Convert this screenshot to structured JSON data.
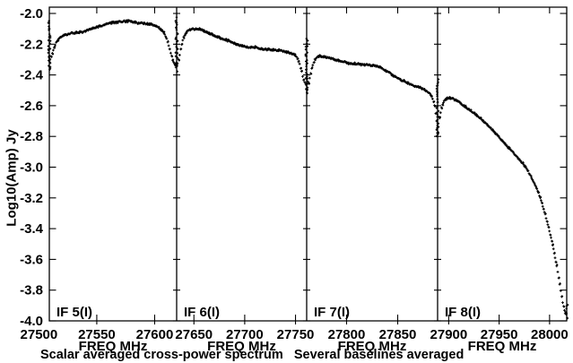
{
  "chart_data": {
    "type": "scatter",
    "title": "",
    "caption": "Scalar averaged cross-power spectrum   Several baselines averaged",
    "ylabel": "Log10(Amp) Jy",
    "x_axis_label": "FREQ MHz",
    "marker": "+",
    "grid": false,
    "legend": "none",
    "colors": {
      "foreground": "#000000",
      "background": "#ffffff"
    },
    "ylim": [
      -4.0,
      -2.0
    ],
    "y_ticks": [
      -2.0,
      -2.2,
      -2.4,
      -2.6,
      -2.8,
      -3.0,
      -3.2,
      -3.4,
      -3.6,
      -3.8,
      -4.0
    ],
    "panels": [
      {
        "label": "IF 5(I)",
        "xlim": [
          27509,
          27619
        ],
        "ticks": [
          27500,
          27550,
          27600
        ],
        "points": [
          [
            27509,
            -2.31
          ],
          [
            27511.6,
            -2.26
          ],
          [
            27515,
            -2.19
          ],
          [
            27519.3,
            -2.15
          ],
          [
            27524.5,
            -2.135
          ],
          [
            27530.5,
            -2.125
          ],
          [
            27537.3,
            -2.12
          ],
          [
            27543.4,
            -2.105
          ],
          [
            27549.4,
            -2.09
          ],
          [
            27556.2,
            -2.075
          ],
          [
            27563.1,
            -2.06
          ],
          [
            27570,
            -2.055
          ],
          [
            27576.9,
            -2.05
          ],
          [
            27583.7,
            -2.06
          ],
          [
            27590.6,
            -2.065
          ],
          [
            27596.6,
            -2.07
          ],
          [
            27601.8,
            -2.085
          ],
          [
            27606.1,
            -2.11
          ],
          [
            27609.5,
            -2.15
          ],
          [
            27612.9,
            -2.23
          ],
          [
            27615.5,
            -2.3
          ],
          [
            27617.2,
            -2.33
          ],
          [
            27619,
            -2.34
          ]
        ],
        "scatter": [
          {
            "x": 27509,
            "lo": -2.37,
            "hi": -2.04
          },
          {
            "x": 27619,
            "lo": -2.37,
            "hi": -2.03
          }
        ]
      },
      {
        "label": "IF 6(I)",
        "xlim": [
          27633,
          27761
        ],
        "ticks": [
          27650,
          27700,
          27750
        ],
        "points": [
          [
            27633,
            -2.34
          ],
          [
            27635,
            -2.3
          ],
          [
            27638,
            -2.2
          ],
          [
            27641,
            -2.14
          ],
          [
            27645,
            -2.11
          ],
          [
            27650,
            -2.1
          ],
          [
            27656,
            -2.105
          ],
          [
            27662,
            -2.12
          ],
          [
            27669,
            -2.14
          ],
          [
            27676,
            -2.16
          ],
          [
            27684,
            -2.18
          ],
          [
            27692,
            -2.2
          ],
          [
            27700,
            -2.215
          ],
          [
            27710,
            -2.22
          ],
          [
            27718,
            -2.23
          ],
          [
            27726,
            -2.235
          ],
          [
            27734,
            -2.24
          ],
          [
            27741,
            -2.25
          ],
          [
            27746,
            -2.26
          ],
          [
            27750,
            -2.275
          ],
          [
            27753,
            -2.31
          ],
          [
            27756,
            -2.38
          ],
          [
            27758,
            -2.43
          ],
          [
            27760,
            -2.46
          ],
          [
            27761,
            -2.47
          ]
        ],
        "scatter": [
          {
            "x": 27761,
            "lo": -2.52,
            "hi": -2.16
          }
        ]
      },
      {
        "label": "IF 7(I)",
        "xlim": [
          27761,
          27889
        ],
        "ticks": [
          27800,
          27850
        ],
        "points": [
          [
            27761,
            -2.5
          ],
          [
            27763,
            -2.45
          ],
          [
            27766,
            -2.36
          ],
          [
            27769,
            -2.3
          ],
          [
            27772,
            -2.28
          ],
          [
            27776,
            -2.28
          ],
          [
            27781,
            -2.285
          ],
          [
            27788,
            -2.3
          ],
          [
            27796,
            -2.315
          ],
          [
            27804,
            -2.325
          ],
          [
            27812,
            -2.33
          ],
          [
            27820,
            -2.335
          ],
          [
            27827,
            -2.34
          ],
          [
            27833,
            -2.35
          ],
          [
            27840,
            -2.38
          ],
          [
            27847,
            -2.41
          ],
          [
            27854,
            -2.435
          ],
          [
            27861,
            -2.455
          ],
          [
            27868,
            -2.475
          ],
          [
            27874,
            -2.49
          ],
          [
            27879,
            -2.51
          ],
          [
            27883,
            -2.54
          ],
          [
            27886,
            -2.6
          ],
          [
            27888,
            -2.7
          ],
          [
            27889,
            -2.78
          ]
        ],
        "scatter": [
          {
            "x": 27889,
            "lo": -2.8,
            "hi": -2.43
          }
        ]
      },
      {
        "label": "IF 8(I)",
        "xlim": [
          27889,
          28017
        ],
        "ticks": [
          27900,
          27950,
          28000
        ],
        "points": [
          [
            27889,
            -2.78
          ],
          [
            27891,
            -2.68
          ],
          [
            27894,
            -2.59
          ],
          [
            27898,
            -2.555
          ],
          [
            27902,
            -2.55
          ],
          [
            27907,
            -2.565
          ],
          [
            27913,
            -2.59
          ],
          [
            27920,
            -2.625
          ],
          [
            27928,
            -2.665
          ],
          [
            27936,
            -2.71
          ],
          [
            27944,
            -2.765
          ],
          [
            27952,
            -2.82
          ],
          [
            27960,
            -2.88
          ],
          [
            27968,
            -2.935
          ],
          [
            27976,
            -3.0
          ],
          [
            27983,
            -3.08
          ],
          [
            27989,
            -3.17
          ],
          [
            27994,
            -3.27
          ],
          [
            27999,
            -3.39
          ],
          [
            28003,
            -3.51
          ],
          [
            28007,
            -3.64
          ],
          [
            28010,
            -3.76
          ],
          [
            28012,
            -3.84
          ],
          [
            28014,
            -3.91
          ],
          [
            28015.5,
            -3.95
          ],
          [
            28017,
            -3.95
          ]
        ],
        "scatter": [
          {
            "x": 28017,
            "lo": -3.99,
            "hi": -3.9
          }
        ]
      }
    ]
  }
}
